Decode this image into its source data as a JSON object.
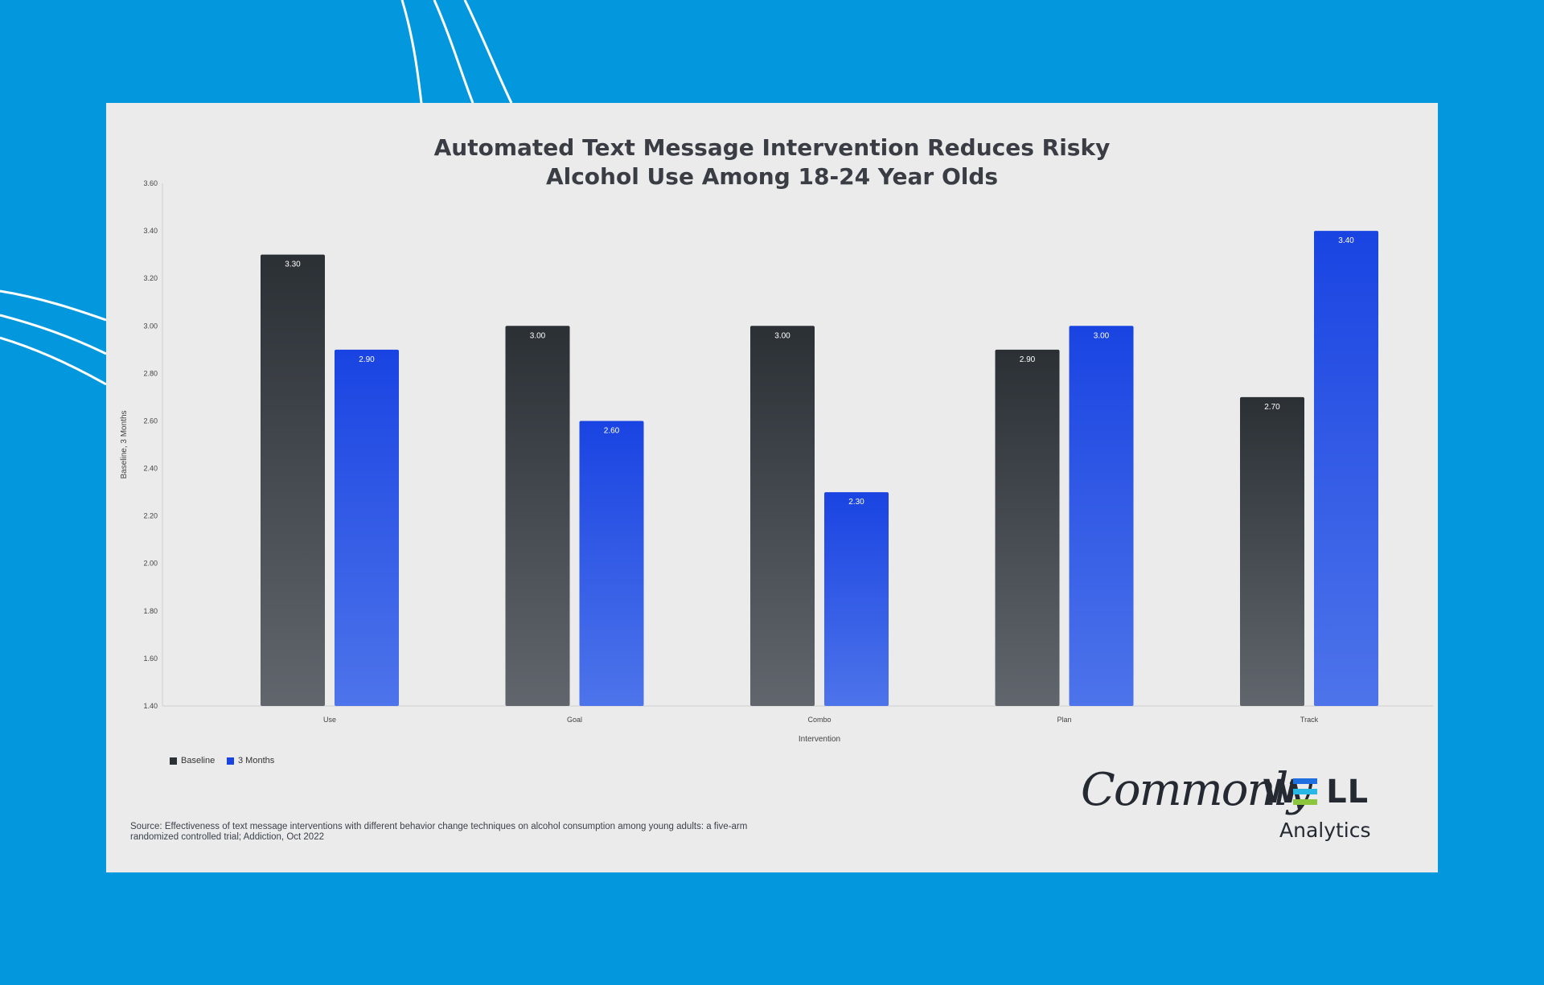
{
  "chart_data": {
    "type": "bar",
    "title": "Automated Text Message Intervention Reduces Risky Alcohol Use Among 18-24 Year Olds",
    "title_lines": [
      "Automated Text Message Intervention Reduces Risky",
      "Alcohol Use Among 18-24 Year Olds"
    ],
    "xlabel": "Intervention",
    "ylabel": "Baseline, 3 Months",
    "categories": [
      "Use",
      "Goal",
      "Combo",
      "Plan",
      "Track"
    ],
    "series": [
      {
        "name": "Baseline",
        "values": [
          3.3,
          3.0,
          3.0,
          2.9,
          2.7
        ],
        "labels": [
          "3.30",
          "3.00",
          "3.00",
          "2.90",
          "2.70"
        ]
      },
      {
        "name": "3 Months",
        "values": [
          2.9,
          2.6,
          2.3,
          3.0,
          3.4
        ],
        "labels": [
          "2.90",
          "2.60",
          "2.30",
          "3.00",
          "3.40"
        ]
      }
    ],
    "ylim": [
      1.4,
      3.6
    ],
    "yticks": [
      "1.40",
      "1.60",
      "1.80",
      "2.00",
      "2.20",
      "2.40",
      "2.60",
      "2.80",
      "3.00",
      "3.20",
      "3.40",
      "3.60"
    ],
    "legend_position": "bottom-left",
    "grid": false,
    "colors": {
      "baseline_top": "#2b3035",
      "baseline_bottom": "#61666d",
      "months_top": "#1a44e2",
      "months_bottom": "#4d74ea"
    }
  },
  "legend": {
    "baseline": "Baseline",
    "months": "3 Months"
  },
  "source_text": "Source: Effectiveness of text message interventions with different behavior change techniques on alcohol consumption among young adults: a five-arm randomized controlled trial; Addiction, Oct 2022",
  "logo": {
    "script": "Commonly",
    "well": "W",
    "well_rest": "LL",
    "sub": "Analytics",
    "e_colors": [
      "#1f6fe0",
      "#29b8e6",
      "#8cc63f"
    ]
  },
  "colors": {
    "page_bg": "#0398dd",
    "card_bg": "#ebebeb"
  }
}
